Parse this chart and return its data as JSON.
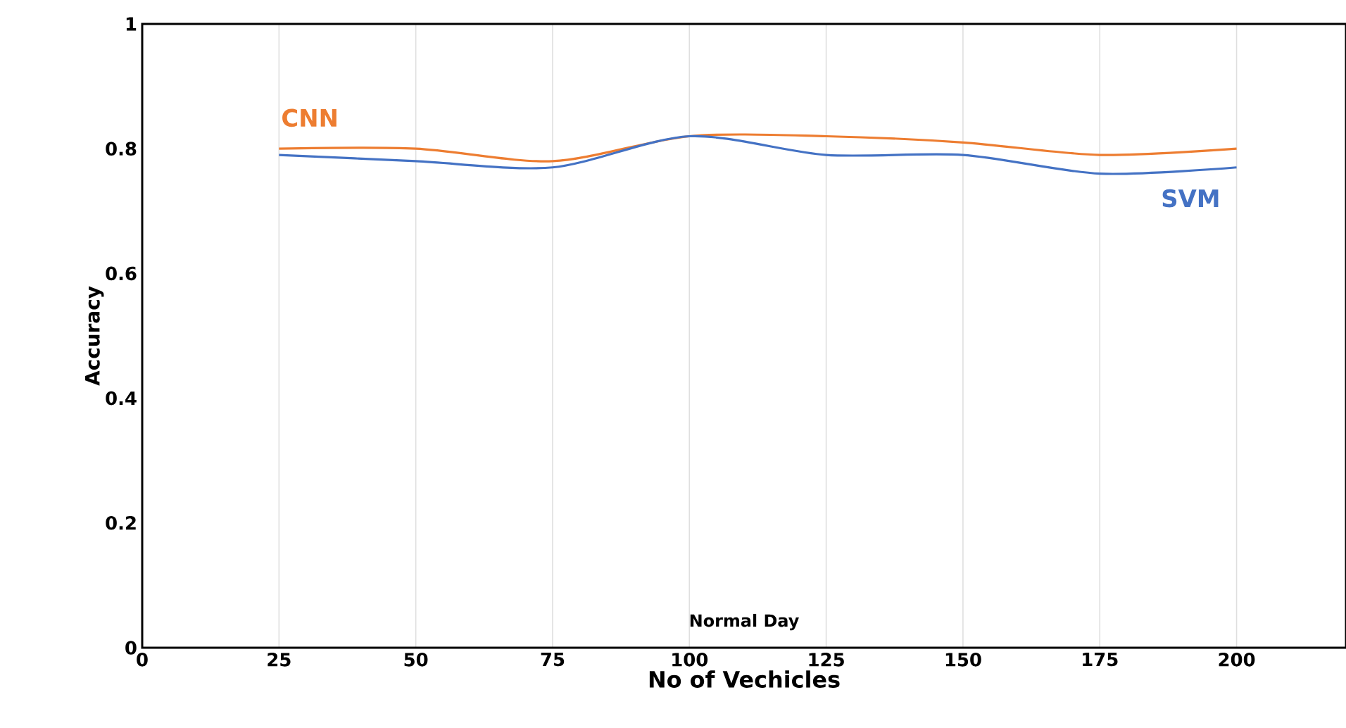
{
  "chart_data": {
    "type": "line",
    "xlabel": "No of Vechicles",
    "ylabel": "Accuracy",
    "x": [
      25,
      50,
      75,
      100,
      125,
      150,
      175,
      200
    ],
    "series": [
      {
        "name": "CNN",
        "color": "#ed7d31",
        "values": [
          0.8,
          0.8,
          0.78,
          0.82,
          0.82,
          0.81,
          0.79,
          0.8
        ]
      },
      {
        "name": "SVM",
        "color": "#4472c4",
        "values": [
          0.79,
          0.78,
          0.77,
          0.82,
          0.79,
          0.79,
          0.76,
          0.77
        ]
      }
    ],
    "xlim": [
      0,
      220
    ],
    "xticks": [
      0,
      25,
      50,
      75,
      100,
      125,
      150,
      175,
      200
    ],
    "ylim": [
      0,
      1
    ],
    "yticks": [
      0,
      0.2,
      0.4,
      0.6,
      0.8,
      1
    ],
    "annotations": [
      "Normal Day"
    ],
    "grid": "x",
    "legend": false,
    "marker": "none",
    "line_style": "solid"
  }
}
